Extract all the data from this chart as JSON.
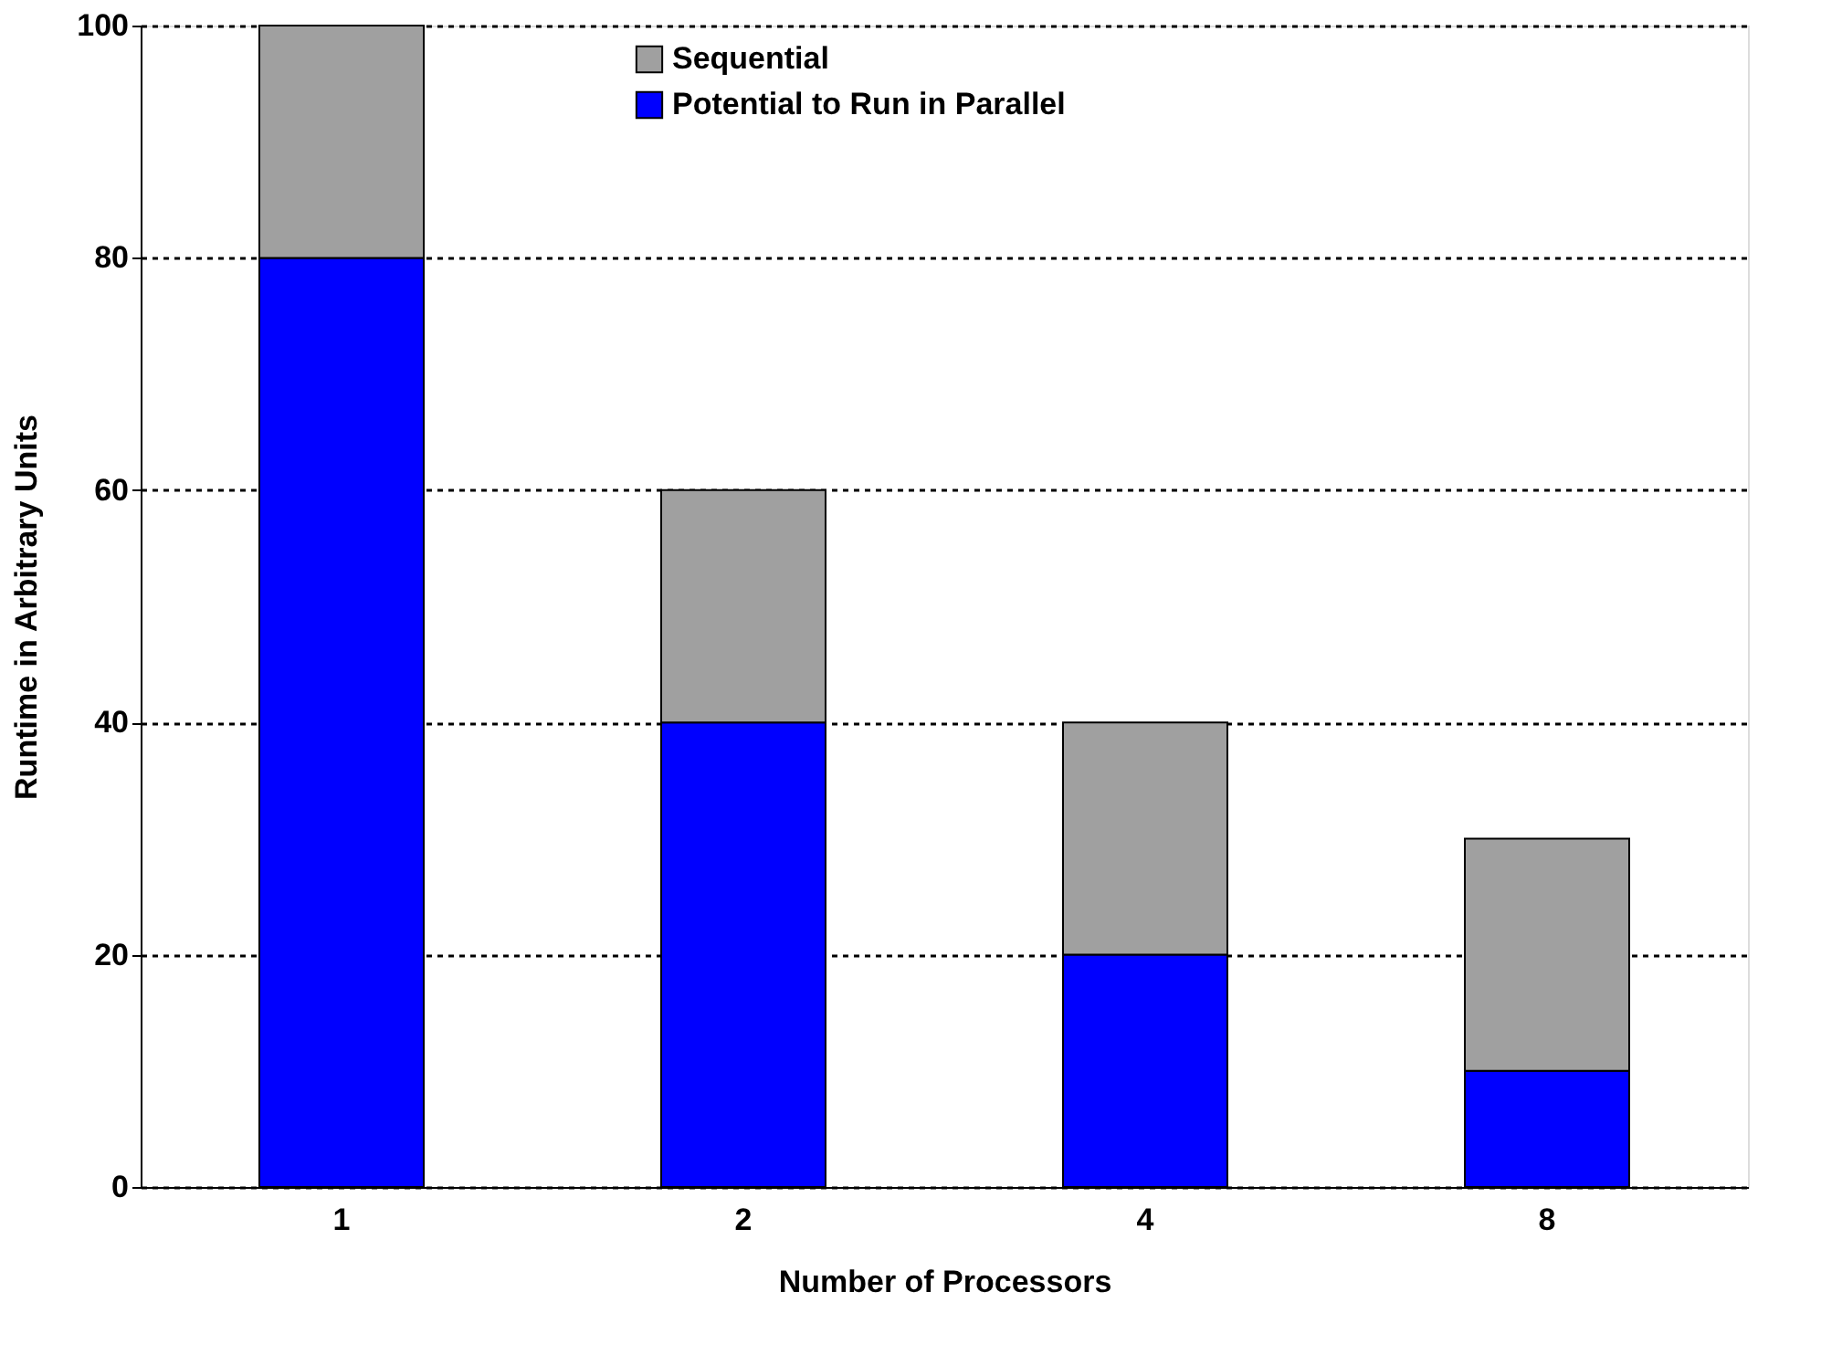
{
  "chart_data": {
    "type": "bar",
    "stacked": true,
    "xlabel": "Number of Processors",
    "ylabel": "Runtime in Arbitrary Units",
    "categories": [
      "1",
      "2",
      "4",
      "8"
    ],
    "series": [
      {
        "name": "Potential to Run in Parallel",
        "color": "#0000ff",
        "values": [
          80,
          40,
          20,
          10
        ]
      },
      {
        "name": "Sequential",
        "color": "#a0a0a0",
        "values": [
          20,
          20,
          20,
          20
        ]
      }
    ],
    "ylim": [
      0,
      100
    ],
    "yticks": [
      0,
      20,
      40,
      60,
      80,
      100
    ],
    "grid": "y",
    "legend": "top"
  }
}
